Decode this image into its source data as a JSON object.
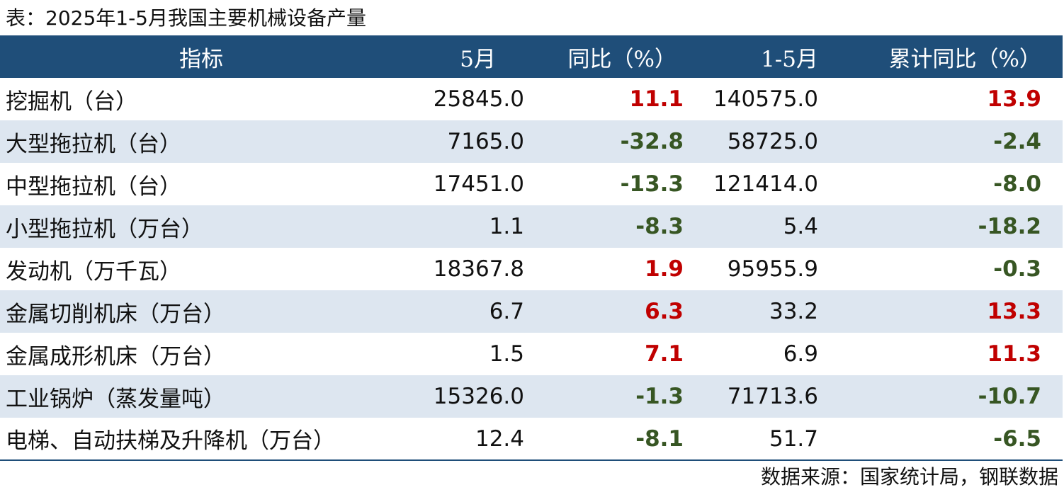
{
  "title": "表：2025年1-5月我国主要机械设备产量",
  "headers": [
    "指标",
    "5月",
    "同比（%）",
    "1-5月",
    "累计同比（%）"
  ],
  "rows": [
    {
      "name": "挖掘机（台）",
      "may": "25845.0",
      "yoy": "11.1",
      "ytd": "140575.0",
      "ytd_yoy": "13.9"
    },
    {
      "name": "大型拖拉机（台）",
      "may": "7165.0",
      "yoy": "-32.8",
      "ytd": "58725.0",
      "ytd_yoy": "-2.4"
    },
    {
      "name": "中型拖拉机（台）",
      "may": "17451.0",
      "yoy": "-13.3",
      "ytd": "121414.0",
      "ytd_yoy": "-8.0"
    },
    {
      "name": "小型拖拉机（万台）",
      "may": "1.1",
      "yoy": "-8.3",
      "ytd": "5.4",
      "ytd_yoy": "-18.2"
    },
    {
      "name": "发动机（万千瓦）",
      "may": "18367.8",
      "yoy": "1.9",
      "ytd": "95955.9",
      "ytd_yoy": "-0.3"
    },
    {
      "name": "金属切削机床（万台）",
      "may": "6.7",
      "yoy": "6.3",
      "ytd": "33.2",
      "ytd_yoy": "13.3"
    },
    {
      "name": "金属成形机床（万台）",
      "may": "1.5",
      "yoy": "7.1",
      "ytd": "6.9",
      "ytd_yoy": "11.3"
    },
    {
      "name": "工业锅炉（蒸发量吨）",
      "may": "15326.0",
      "yoy": "-1.3",
      "ytd": "71713.6",
      "ytd_yoy": "-10.7"
    },
    {
      "name": "电梯、自动扶梯及升降机（万台）",
      "may": "12.4",
      "yoy": "-8.1",
      "ytd": "51.7",
      "ytd_yoy": "-6.5"
    }
  ],
  "source": "数据来源：国家统计局，钢联数据",
  "colors": {
    "header_bg": "#1f4e79",
    "row_alt_bg": "#dde6f0",
    "positive": "#c00000",
    "negative": "#375623"
  }
}
